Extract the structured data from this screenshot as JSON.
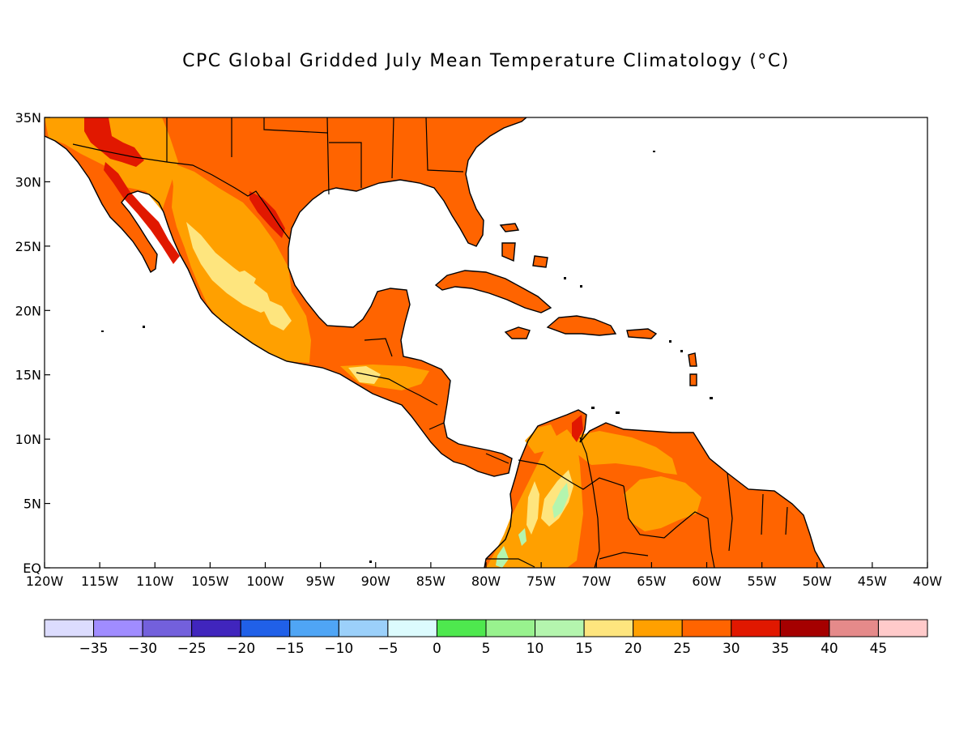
{
  "title": "CPC Global Gridded July Mean Temperature Climatology (°C)",
  "map": {
    "lon_range": [
      -120,
      -40
    ],
    "lat_range": [
      0,
      35
    ],
    "x_ticks": [
      {
        "lon": -120,
        "label": "120W"
      },
      {
        "lon": -115,
        "label": "115W"
      },
      {
        "lon": -110,
        "label": "110W"
      },
      {
        "lon": -105,
        "label": "105W"
      },
      {
        "lon": -100,
        "label": "100W"
      },
      {
        "lon": -95,
        "label": "95W"
      },
      {
        "lon": -90,
        "label": "90W"
      },
      {
        "lon": -85,
        "label": "85W"
      },
      {
        "lon": -80,
        "label": "80W"
      },
      {
        "lon": -75,
        "label": "75W"
      },
      {
        "lon": -70,
        "label": "70W"
      },
      {
        "lon": -65,
        "label": "65W"
      },
      {
        "lon": -60,
        "label": "60W"
      },
      {
        "lon": -55,
        "label": "55W"
      },
      {
        "lon": -50,
        "label": "50W"
      },
      {
        "lon": -45,
        "label": "45W"
      },
      {
        "lon": -40,
        "label": "40W"
      }
    ],
    "y_ticks": [
      {
        "lat": 0,
        "label": "EQ"
      },
      {
        "lat": 5,
        "label": "5N"
      },
      {
        "lat": 10,
        "label": "10N"
      },
      {
        "lat": 15,
        "label": "15N"
      },
      {
        "lat": 20,
        "label": "20N"
      },
      {
        "lat": 25,
        "label": "25N"
      },
      {
        "lat": 30,
        "label": "30N"
      },
      {
        "lat": 35,
        "label": "35N"
      }
    ]
  },
  "colorbar": {
    "colors": [
      "#dcdcfe",
      "#a08cff",
      "#7360dc",
      "#4025bd",
      "#2060e8",
      "#4fa5f5",
      "#9bd0fa",
      "#dcfbfd",
      "#4ee84e",
      "#98f28e",
      "#b4f5ae",
      "#fee57e",
      "#ffa000",
      "#ff6400",
      "#e11800",
      "#a50000",
      "#e58a8a",
      "#ffcaca"
    ],
    "labels": [
      "-35",
      "-30",
      "-25",
      "-20",
      "-15",
      "-10",
      "-5",
      "0",
      "5",
      "10",
      "15",
      "20",
      "25",
      "30",
      "35",
      "40",
      "45"
    ]
  },
  "colors": {
    "land_base": "#ff6400",
    "warm_20_25": "#ffa000",
    "cool_15_20": "#fee57e",
    "mild_10_15": "#b4f5ae",
    "hot_35_40": "#e11800",
    "outline": "#000000"
  }
}
